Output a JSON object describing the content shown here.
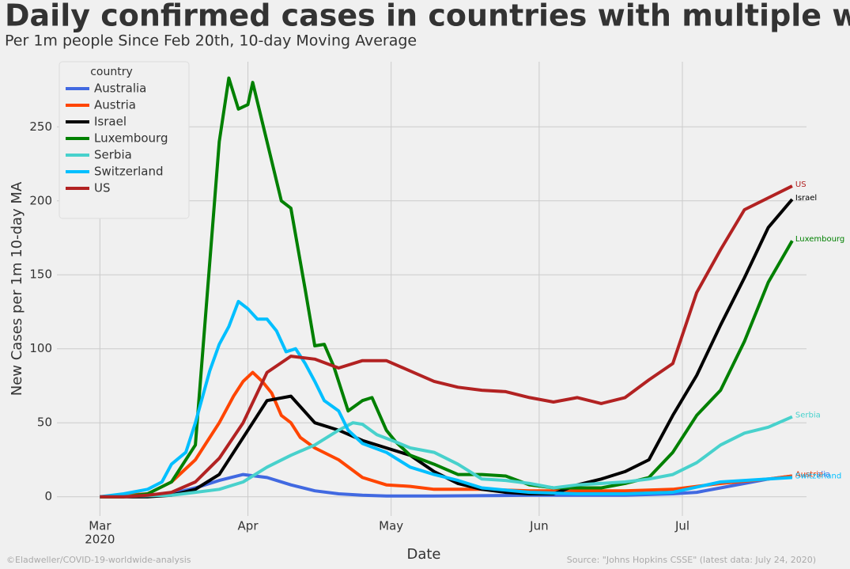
{
  "chart_data": {
    "type": "line",
    "title": "Daily confirmed cases in countries with multiple waves",
    "subtitle": "Per 1m people Since Feb 20th, 10-day Moving Average",
    "xlabel": "Date",
    "ylabel": "New Cases per 1m 10-day MA",
    "legend_title": "country",
    "legend": "upper left",
    "grid": true,
    "xlim": [
      -9,
      148
    ],
    "ylim": [
      -13,
      294
    ],
    "xticks": [
      {
        "value": 0,
        "label": "Mar"
      },
      {
        "value": 31,
        "label": "Apr"
      },
      {
        "value": 61,
        "label": "May"
      },
      {
        "value": 92,
        "label": "Jun"
      },
      {
        "value": 122,
        "label": "Jul"
      }
    ],
    "xtick_year": "2020",
    "yticks": [
      0,
      50,
      100,
      150,
      200,
      250
    ],
    "footer_left": "©Eladweller/COVID-19-worldwide-analysis",
    "footer_right": "Source: \"Johns Hopkins CSSE\" (latest data: July 24, 2020)",
    "series": [
      {
        "name": "Australia",
        "color": "#4169e1",
        "x": [
          0,
          10,
          15,
          20,
          25,
          30,
          35,
          40,
          45,
          50,
          55,
          60,
          70,
          90,
          110,
          120,
          125,
          130,
          135,
          140,
          145
        ],
        "values": [
          0,
          1,
          2,
          6,
          11,
          15,
          13,
          8,
          4,
          2,
          1,
          0.5,
          0.5,
          1,
          1,
          2,
          3,
          6,
          9,
          12,
          14
        ]
      },
      {
        "name": "Austria",
        "color": "#ff4500",
        "x": [
          0,
          10,
          15,
          20,
          25,
          28,
          30,
          32,
          34,
          36,
          38,
          40,
          42,
          45,
          50,
          55,
          60,
          65,
          70,
          80,
          90,
          100,
          110,
          120,
          130,
          140,
          145
        ],
        "values": [
          0,
          2,
          10,
          25,
          50,
          68,
          78,
          84,
          78,
          70,
          55,
          50,
          40,
          33,
          25,
          13,
          8,
          7,
          5,
          5,
          4,
          4,
          4,
          5,
          9,
          12,
          14
        ]
      },
      {
        "name": "Israel",
        "color": "#000000",
        "x": [
          0,
          10,
          15,
          20,
          25,
          30,
          35,
          40,
          45,
          50,
          55,
          60,
          65,
          70,
          75,
          80,
          85,
          90,
          95,
          100,
          105,
          110,
          115,
          120,
          125,
          130,
          135,
          140,
          145
        ],
        "values": [
          0,
          0,
          1,
          5,
          15,
          40,
          65,
          68,
          50,
          45,
          38,
          33,
          28,
          17,
          9,
          5,
          3,
          2,
          2,
          8,
          12,
          17,
          25,
          55,
          82,
          116,
          148,
          182,
          201
        ]
      },
      {
        "name": "Luxembourg",
        "color": "#008000",
        "x": [
          0,
          5,
          10,
          15,
          20,
          25,
          27,
          29,
          31,
          32,
          35,
          38,
          40,
          43,
          45,
          47,
          49,
          52,
          55,
          57,
          60,
          62,
          65,
          70,
          75,
          80,
          85,
          90,
          95,
          100,
          105,
          110,
          115,
          120,
          125,
          130,
          135,
          140,
          145
        ],
        "values": [
          0,
          0,
          2,
          10,
          35,
          240,
          283,
          262,
          265,
          280,
          240,
          200,
          195,
          140,
          102,
          103,
          88,
          58,
          65,
          67,
          45,
          37,
          28,
          22,
          15,
          15,
          14,
          8,
          6,
          6,
          6,
          9,
          13,
          30,
          55,
          72,
          105,
          145,
          173
        ]
      },
      {
        "name": "Serbia",
        "color": "#48d1cc",
        "x": [
          0,
          15,
          20,
          25,
          30,
          35,
          40,
          45,
          50,
          53,
          55,
          58,
          62,
          65,
          70,
          75,
          80,
          85,
          90,
          95,
          100,
          110,
          115,
          120,
          125,
          130,
          135,
          140,
          145
        ],
        "values": [
          0,
          1,
          3,
          5,
          10,
          20,
          28,
          35,
          45,
          50,
          49,
          42,
          37,
          33,
          30,
          22,
          12,
          11,
          9,
          6,
          8,
          10,
          12,
          15,
          23,
          35,
          43,
          47,
          54
        ]
      },
      {
        "name": "Switzerland",
        "color": "#00bfff",
        "x": [
          0,
          5,
          10,
          13,
          15,
          18,
          20,
          23,
          25,
          27,
          29,
          31,
          33,
          35,
          37,
          39,
          41,
          43,
          45,
          47,
          50,
          52,
          55,
          60,
          65,
          70,
          75,
          80,
          90,
          100,
          110,
          120,
          130,
          140,
          145
        ],
        "values": [
          0,
          2,
          5,
          10,
          22,
          30,
          50,
          85,
          103,
          115,
          132,
          127,
          120,
          120,
          112,
          98,
          100,
          90,
          78,
          65,
          58,
          45,
          36,
          30,
          20,
          15,
          11,
          6,
          3,
          2,
          2,
          3,
          10,
          12,
          13
        ]
      },
      {
        "name": "US",
        "color": "#b22222",
        "x": [
          0,
          5,
          10,
          15,
          20,
          25,
          30,
          35,
          40,
          45,
          50,
          55,
          60,
          65,
          70,
          75,
          80,
          85,
          90,
          95,
          100,
          105,
          110,
          115,
          120,
          125,
          130,
          135,
          140,
          145
        ],
        "values": [
          0,
          0,
          1,
          3,
          10,
          26,
          50,
          84,
          95,
          93,
          87,
          92,
          92,
          85,
          78,
          74,
          72,
          71,
          67,
          64,
          67,
          63,
          67,
          79,
          90,
          138,
          167,
          194,
          202,
          210
        ]
      }
    ]
  }
}
